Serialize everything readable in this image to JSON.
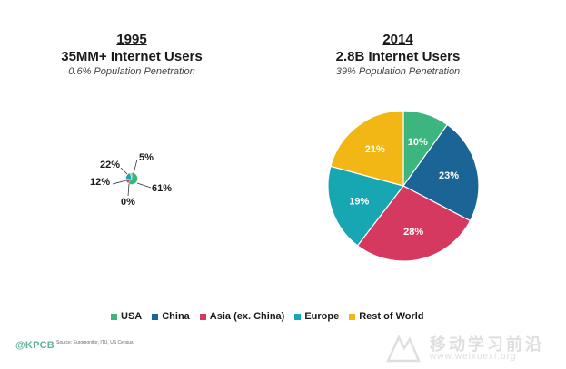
{
  "chart_data": [
    {
      "type": "pie",
      "year": "1995",
      "title": "35MM+ Internet Users",
      "subtitle": "0.6% Population Penetration",
      "categories": [
        "USA",
        "China",
        "Asia (ex. China)",
        "Europe",
        "Rest of World"
      ],
      "values": [
        61,
        0,
        12,
        22,
        5
      ],
      "labels": [
        "61%",
        "0%",
        "12%",
        "22%",
        "5%"
      ]
    },
    {
      "type": "pie",
      "year": "2014",
      "title": "2.8B Internet Users",
      "subtitle": "39% Population Penetration",
      "categories": [
        "USA",
        "China",
        "Asia (ex. China)",
        "Europe",
        "Rest of World"
      ],
      "values": [
        10,
        23,
        28,
        19,
        21
      ],
      "labels": [
        "10%",
        "23%",
        "28%",
        "19%",
        "21%"
      ]
    }
  ],
  "legend": [
    {
      "label": "USA",
      "color": "#3cb57f"
    },
    {
      "label": "China",
      "color": "#1a6496"
    },
    {
      "label": "Asia (ex. China)",
      "color": "#d6395f"
    },
    {
      "label": "Europe",
      "color": "#17a7b3"
    },
    {
      "label": "Rest of World",
      "color": "#f2b714"
    }
  ],
  "footer": {
    "brand": "@KPCB",
    "source": "Source: Euromonitor, ITU, US Census."
  },
  "watermark": {
    "main": "移动学习前沿",
    "sub": "www.weixuexi.org"
  }
}
